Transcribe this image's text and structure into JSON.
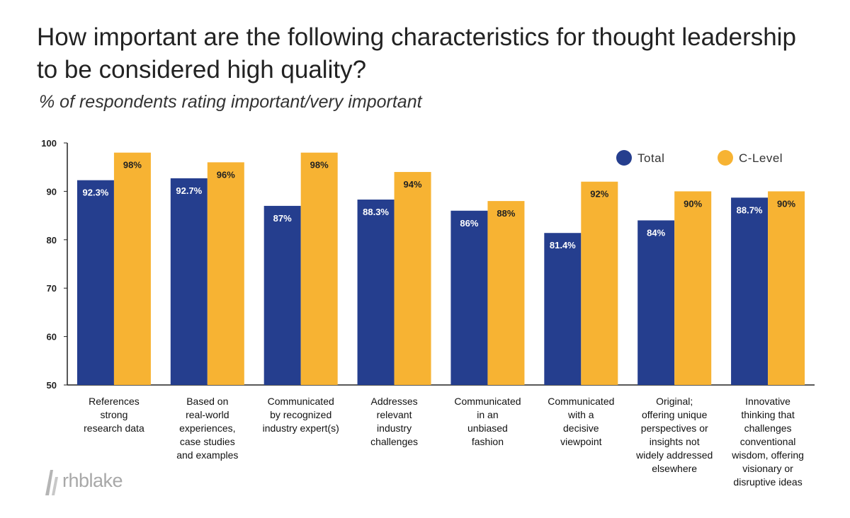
{
  "title": "How important are the following characteristics for thought leadership to be considered high quality?",
  "subtitle": "% of respondents rating important/very important",
  "logo_text": "rhblake",
  "colors": {
    "total": "#253e8e",
    "clevel": "#f7b333",
    "axis": "#222222"
  },
  "chart_data": {
    "type": "bar",
    "ylim": [
      50,
      100
    ],
    "yticks": [
      50,
      60,
      70,
      80,
      90,
      100
    ],
    "grid": false,
    "legend_position": "top-right",
    "categories": [
      [
        "References",
        "strong",
        "research data"
      ],
      [
        "Based on",
        "real-world",
        "experiences,",
        "case studies",
        "and examples"
      ],
      [
        "Communicated",
        "by recognized",
        "industry expert(s)"
      ],
      [
        "Addresses",
        "relevant",
        "industry",
        "challenges"
      ],
      [
        "Communicated",
        "in an",
        "unbiased",
        "fashion"
      ],
      [
        "Communicated",
        "with a",
        "decisive",
        "viewpoint"
      ],
      [
        "Original;",
        "offering unique",
        "perspectives or",
        "insights not",
        "widely addressed",
        "elsewhere"
      ],
      [
        "Innovative",
        "thinking that",
        "challenges",
        "conventional",
        "wisdom, offering",
        "visionary or",
        "disruptive ideas"
      ]
    ],
    "series": [
      {
        "name": "Total",
        "key": "total",
        "values": [
          92.3,
          92.7,
          87,
          88.3,
          86,
          81.4,
          84,
          88.7
        ],
        "labels": [
          "92.3%",
          "92.7%",
          "87%",
          "88.3%",
          "86%",
          "81.4%",
          "84%",
          "88.7%"
        ]
      },
      {
        "name": "C-Level",
        "key": "clevel",
        "values": [
          98,
          96,
          98,
          94,
          88,
          92,
          90,
          90
        ],
        "labels": [
          "98%",
          "96%",
          "98%",
          "94%",
          "88%",
          "92%",
          "90%",
          "90%"
        ]
      }
    ]
  }
}
